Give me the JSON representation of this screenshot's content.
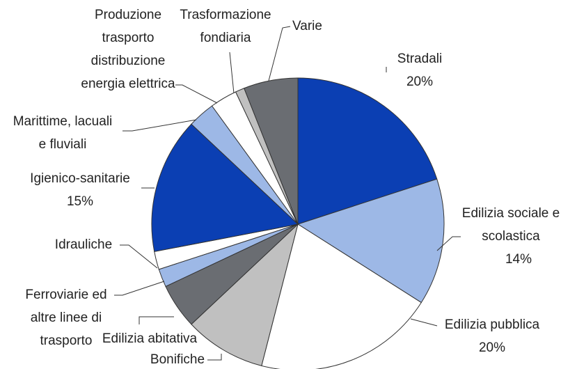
{
  "chart_data": {
    "type": "pie",
    "categories": [
      "Stradali",
      "Edilizia sociale e\nscolastica",
      "Edilizia pubblica",
      "Bonifiche",
      "Edilizia abitativa",
      "Ferroviarie ed\naltre linee di\ntrasporto",
      "Idrauliche",
      "Igienico-sanitarie",
      "Marittime, lacuali\ne fluviali",
      "Produzione\ntrasporto\ndistribuzione\nenergia elettrica",
      "Trasformazione\nfondiaria",
      "Varie"
    ],
    "values": [
      20,
      14,
      20,
      9,
      5,
      2,
      2,
      15,
      3,
      3,
      1,
      6
    ],
    "value_labels": [
      "20%",
      "14%",
      "20%",
      null,
      null,
      null,
      null,
      "15%",
      null,
      null,
      null,
      null
    ],
    "colors": [
      "#0b3fb3",
      "#9db8e6",
      "#ffffff",
      "#c0c0c0",
      "#6a6d72",
      "#9db8e6",
      "#ffffff",
      "#0b3fb3",
      "#9db8e6",
      "#ffffff",
      "#c0c0c0",
      "#6a6d72"
    ]
  }
}
